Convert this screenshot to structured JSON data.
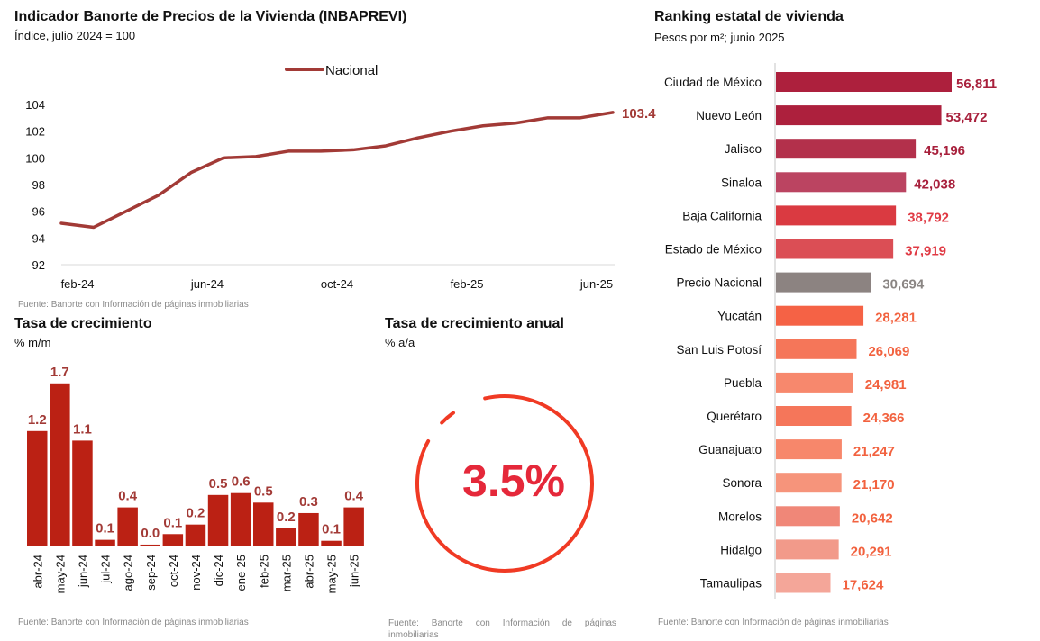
{
  "line_panel": {
    "title": "Indicador Banorte de Precios de la Vivienda (INBAPREVI)",
    "subtitle": "Índice, julio 2024 = 100",
    "source": "Fuente: Banorte con Información de páginas inmobiliarias"
  },
  "mm_panel": {
    "title": "Tasa de crecimiento",
    "subtitle": "% m/m",
    "source": "Fuente: Banorte con Información de páginas inmobiliarias"
  },
  "annual_panel": {
    "title": "Tasa de crecimiento anual",
    "subtitle": "% a/a",
    "value": "3.5%",
    "value_number": 3.5,
    "color": "#f03a24",
    "source_line1": "Fuente:     Banorte     con     Información     de     páginas",
    "source_line2": "inmobiliarias"
  },
  "rank_panel": {
    "title": "Ranking estatal de vivienda",
    "subtitle": "Pesos por m²; junio 2025",
    "source": "Fuente: Banorte con Información de páginas inmobiliarias"
  },
  "chart_data": [
    {
      "type": "line",
      "title": "Indicador Banorte de Precios de la Vivienda (INBAPREVI)",
      "legend": "Nacional",
      "legend_position": "top",
      "color": "#a23a36",
      "values": [
        95.1,
        94.8,
        96.0,
        97.2,
        98.9,
        100.0,
        100.1,
        100.5,
        100.5,
        100.6,
        100.9,
        101.5,
        102.0,
        102.4,
        102.6,
        103.0,
        103.0,
        103.4
      ],
      "x_ticks": [
        {
          "pos": 0.5,
          "label": "feb-24"
        },
        {
          "pos": 4.5,
          "label": "jun-24"
        },
        {
          "pos": 8.5,
          "label": "oct-24"
        },
        {
          "pos": 12.5,
          "label": "feb-25"
        },
        {
          "pos": 16.5,
          "label": "jun-25"
        }
      ],
      "yticks": [
        "92",
        "94",
        "96",
        "98",
        "100",
        "102",
        "104"
      ],
      "ylim": [
        92,
        104
      ],
      "end_label": "103.4"
    },
    {
      "type": "bar",
      "title": "Tasa de crecimiento",
      "ylabel": "% m/m",
      "color": "#bb2114",
      "label_color": "#a23a36",
      "categories": [
        "abr-24",
        "may-24",
        "jun-24",
        "jul-24",
        "ago-24",
        "sep-24",
        "oct-24",
        "nov-24",
        "dic-24",
        "ene-25",
        "feb-25",
        "mar-25",
        "abr-25",
        "may-25",
        "jun-25"
      ],
      "values": [
        1.2,
        1.7,
        1.1,
        0.1,
        0.4,
        0.0,
        0.1,
        0.2,
        0.5,
        0.6,
        0.5,
        0.2,
        0.3,
        0.1,
        0.4
      ],
      "labels": [
        "1.2",
        "1.7",
        "1.1",
        "0.1",
        "0.4",
        "0.0",
        "0.1",
        "0.2",
        "0.5",
        "0.6",
        "0.5",
        "0.2",
        "0.3",
        "0.1",
        "0.4"
      ],
      "plot_heights": [
        1.2,
        1.7,
        1.1,
        0.06,
        0.4,
        0.01,
        0.12,
        0.22,
        0.53,
        0.55,
        0.45,
        0.18,
        0.34,
        0.05,
        0.4
      ]
    },
    {
      "type": "bar",
      "orientation": "horizontal",
      "title": "Ranking estatal de vivienda",
      "ylabel": "Pesos por m²; junio 2025",
      "categories": [
        "Ciudad de México",
        "Nuevo León",
        "Jalisco",
        "Sinaloa",
        "Baja California",
        "Estado de México",
        "Precio Nacional",
        "Yucatán",
        "San Luis Potosí",
        "Puebla",
        "Querétaro",
        "Guanajuato",
        "Sonora",
        "Morelos",
        "Hidalgo",
        "Tamaulipas"
      ],
      "values": [
        56811,
        53472,
        45196,
        42038,
        38792,
        37919,
        30694,
        28281,
        26069,
        24981,
        24366,
        21247,
        21170,
        20642,
        20291,
        17624
      ],
      "labels": [
        "56,811",
        "53,472",
        "45,196",
        "42,038",
        "38,792",
        "37,919",
        "30,694",
        "28,281",
        "26,069",
        "24,981",
        "24,366",
        "21,247",
        "21,170",
        "20,642",
        "20,291",
        "17,624"
      ],
      "bar_colors": [
        "#ad203d",
        "#ad203d",
        "#b3304b",
        "#bb4461",
        "#da3a41",
        "#db4e55",
        "#8c8381",
        "#f56245",
        "#f57659",
        "#f7886d",
        "#f5765a",
        "#f7876b",
        "#f6947b",
        "#f08778",
        "#f29a8a",
        "#f4a699"
      ],
      "label_colors": [
        "#a8203c",
        "#a8203c",
        "#a8203c",
        "#a8203c",
        "#e03a44",
        "#e03a44",
        "#8a8583",
        "#f2623f",
        "#f2623f",
        "#f2623f",
        "#f2623f",
        "#f2623f",
        "#f2623f",
        "#f2623f",
        "#f2623f",
        "#f2623f"
      ]
    }
  ]
}
